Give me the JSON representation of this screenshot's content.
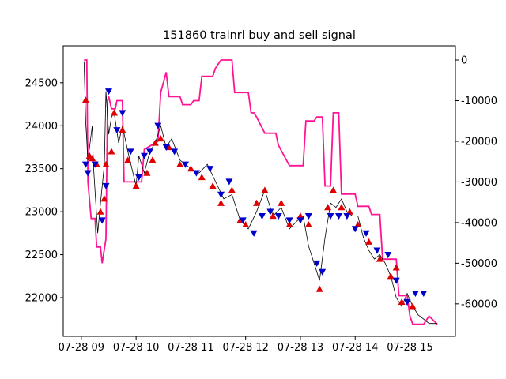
{
  "chart_data": {
    "type": "line",
    "title": "151860 trainrl buy and sell signal",
    "x_ticks": [
      "07-28 09",
      "07-28 10",
      "07-28 11",
      "07-28 12",
      "07-28 13",
      "07-28 14",
      "07-28 15"
    ],
    "x_tick_hours": [
      9,
      10,
      11,
      12,
      13,
      14,
      15
    ],
    "xlim_hours": [
      8.67,
      15.83
    ],
    "left_axis": {
      "ylim": [
        21550,
        24930
      ],
      "ticks": [
        22000,
        22500,
        23000,
        23500,
        24000,
        24500
      ],
      "tick_labels": [
        "22000",
        "22500",
        "23000",
        "23500",
        "24000",
        "24500"
      ]
    },
    "right_axis": {
      "ylim": [
        -68000,
        3500
      ],
      "ticks": [
        -60000,
        -50000,
        -40000,
        -30000,
        -20000,
        -10000,
        0
      ],
      "tick_labels": [
        "-60000",
        "-50000",
        "-40000",
        "-30000",
        "-20000",
        "-10000",
        "0"
      ]
    },
    "colors": {
      "price": "#000000",
      "equity": "#ff1493",
      "buy": "#e00000",
      "sell": "#0000cc"
    },
    "series": [
      {
        "kind": "price",
        "axis": "left",
        "points": [
          [
            9.05,
            24750
          ],
          [
            9.08,
            24050
          ],
          [
            9.12,
            23600
          ],
          [
            9.2,
            24000
          ],
          [
            9.22,
            23550
          ],
          [
            9.3,
            22750
          ],
          [
            9.35,
            23100
          ],
          [
            9.42,
            23550
          ],
          [
            9.45,
            24400
          ],
          [
            9.5,
            23900
          ],
          [
            9.55,
            24100
          ],
          [
            9.6,
            24150
          ],
          [
            9.68,
            23800
          ],
          [
            9.75,
            24000
          ],
          [
            9.85,
            23700
          ],
          [
            10.0,
            23300
          ],
          [
            10.05,
            23650
          ],
          [
            10.15,
            23450
          ],
          [
            10.25,
            23700
          ],
          [
            10.35,
            23800
          ],
          [
            10.45,
            24000
          ],
          [
            10.55,
            23750
          ],
          [
            10.65,
            23850
          ],
          [
            10.8,
            23600
          ],
          [
            11.0,
            23500
          ],
          [
            11.15,
            23450
          ],
          [
            11.3,
            23550
          ],
          [
            11.45,
            23350
          ],
          [
            11.6,
            23150
          ],
          [
            11.75,
            23200
          ],
          [
            11.9,
            22900
          ],
          [
            12.05,
            22800
          ],
          [
            12.2,
            23000
          ],
          [
            12.35,
            23250
          ],
          [
            12.5,
            22950
          ],
          [
            12.65,
            23050
          ],
          [
            12.8,
            22800
          ],
          [
            12.95,
            22900
          ],
          [
            13.05,
            22950
          ],
          [
            13.15,
            22600
          ],
          [
            13.25,
            22400
          ],
          [
            13.35,
            22200
          ],
          [
            13.45,
            22700
          ],
          [
            13.55,
            23100
          ],
          [
            13.65,
            23050
          ],
          [
            13.75,
            23150
          ],
          [
            13.85,
            23000
          ],
          [
            13.95,
            22950
          ],
          [
            14.05,
            22950
          ],
          [
            14.15,
            22700
          ],
          [
            14.25,
            22550
          ],
          [
            14.35,
            22450
          ],
          [
            14.45,
            22500
          ],
          [
            14.55,
            22400
          ],
          [
            14.65,
            22250
          ],
          [
            14.75,
            22000
          ],
          [
            14.85,
            21900
          ],
          [
            14.95,
            22050
          ],
          [
            15.05,
            21900
          ],
          [
            15.15,
            21800
          ],
          [
            15.25,
            21750
          ],
          [
            15.35,
            21700
          ],
          [
            15.5,
            21700
          ]
        ]
      },
      {
        "kind": "equity",
        "axis": "right",
        "points": [
          [
            9.05,
            0
          ],
          [
            9.1,
            0
          ],
          [
            9.12,
            -30000
          ],
          [
            9.18,
            -39000
          ],
          [
            9.25,
            -39000
          ],
          [
            9.28,
            -46000
          ],
          [
            9.35,
            -46000
          ],
          [
            9.38,
            -50000
          ],
          [
            9.45,
            -44000
          ],
          [
            9.48,
            -10000
          ],
          [
            9.5,
            -9000
          ],
          [
            9.55,
            -12000
          ],
          [
            9.62,
            -12000
          ],
          [
            9.65,
            -10000
          ],
          [
            9.75,
            -10000
          ],
          [
            9.78,
            -30000
          ],
          [
            10.1,
            -30000
          ],
          [
            10.15,
            -22000
          ],
          [
            10.4,
            -20000
          ],
          [
            10.45,
            -8000
          ],
          [
            10.55,
            -3000
          ],
          [
            10.6,
            -9000
          ],
          [
            10.8,
            -9000
          ],
          [
            10.85,
            -11000
          ],
          [
            11.0,
            -11000
          ],
          [
            11.05,
            -10000
          ],
          [
            11.15,
            -10000
          ],
          [
            11.2,
            -4000
          ],
          [
            11.4,
            -4000
          ],
          [
            11.45,
            -2000
          ],
          [
            11.55,
            0
          ],
          [
            11.75,
            0
          ],
          [
            11.8,
            -8000
          ],
          [
            12.05,
            -8000
          ],
          [
            12.1,
            -13000
          ],
          [
            12.15,
            -13000
          ],
          [
            12.2,
            -14000
          ],
          [
            12.35,
            -18000
          ],
          [
            12.55,
            -18000
          ],
          [
            12.6,
            -21000
          ],
          [
            12.8,
            -26000
          ],
          [
            13.05,
            -26000
          ],
          [
            13.1,
            -15000
          ],
          [
            13.25,
            -15000
          ],
          [
            13.3,
            -14000
          ],
          [
            13.4,
            -14000
          ],
          [
            13.45,
            -31000
          ],
          [
            13.55,
            -31000
          ],
          [
            13.6,
            -13000
          ],
          [
            13.7,
            -13000
          ],
          [
            13.75,
            -33000
          ],
          [
            14.0,
            -33000
          ],
          [
            14.05,
            -36000
          ],
          [
            14.25,
            -36000
          ],
          [
            14.3,
            -38000
          ],
          [
            14.45,
            -38000
          ],
          [
            14.5,
            -49000
          ],
          [
            14.75,
            -49000
          ],
          [
            14.8,
            -58000
          ],
          [
            14.95,
            -58000
          ],
          [
            15.0,
            -63000
          ],
          [
            15.05,
            -65000
          ],
          [
            15.25,
            -65000
          ],
          [
            15.35,
            -63000
          ],
          [
            15.5,
            -65000
          ]
        ]
      }
    ],
    "buy_signals": [
      [
        9.08,
        24300
      ],
      [
        9.15,
        23650
      ],
      [
        9.2,
        23620
      ],
      [
        9.28,
        23550
      ],
      [
        9.35,
        23000
      ],
      [
        9.42,
        23150
      ],
      [
        9.45,
        23550
      ],
      [
        9.55,
        23700
      ],
      [
        9.6,
        24150
      ],
      [
        9.75,
        23950
      ],
      [
        9.85,
        23600
      ],
      [
        10.0,
        23300
      ],
      [
        10.2,
        23450
      ],
      [
        10.3,
        23600
      ],
      [
        10.35,
        23800
      ],
      [
        10.45,
        23850
      ],
      [
        10.6,
        23750
      ],
      [
        10.8,
        23550
      ],
      [
        11.0,
        23500
      ],
      [
        11.2,
        23400
      ],
      [
        11.4,
        23300
      ],
      [
        11.55,
        23100
      ],
      [
        11.75,
        23250
      ],
      [
        11.9,
        22900
      ],
      [
        12.0,
        22850
      ],
      [
        12.2,
        23100
      ],
      [
        12.35,
        23250
      ],
      [
        12.5,
        22950
      ],
      [
        12.65,
        23100
      ],
      [
        12.8,
        22850
      ],
      [
        13.0,
        22950
      ],
      [
        13.15,
        22850
      ],
      [
        13.35,
        22100
      ],
      [
        13.5,
        23050
      ],
      [
        13.6,
        23250
      ],
      [
        13.75,
        23050
      ],
      [
        13.9,
        23000
      ],
      [
        14.05,
        22850
      ],
      [
        14.25,
        22650
      ],
      [
        14.45,
        22450
      ],
      [
        14.65,
        22250
      ],
      [
        14.75,
        22350
      ],
      [
        14.85,
        21950
      ],
      [
        15.05,
        21900
      ]
    ],
    "sell_signals": [
      [
        9.08,
        23550
      ],
      [
        9.12,
        23450
      ],
      [
        9.25,
        23550
      ],
      [
        9.38,
        22900
      ],
      [
        9.45,
        23300
      ],
      [
        9.5,
        24400
      ],
      [
        9.65,
        23950
      ],
      [
        9.75,
        24150
      ],
      [
        9.9,
        23700
      ],
      [
        10.05,
        23400
      ],
      [
        10.15,
        23650
      ],
      [
        10.25,
        23700
      ],
      [
        10.4,
        24000
      ],
      [
        10.55,
        23750
      ],
      [
        10.7,
        23700
      ],
      [
        10.9,
        23550
      ],
      [
        11.1,
        23450
      ],
      [
        11.35,
        23500
      ],
      [
        11.55,
        23200
      ],
      [
        11.7,
        23350
      ],
      [
        11.95,
        22900
      ],
      [
        12.15,
        22750
      ],
      [
        12.3,
        22950
      ],
      [
        12.45,
        23000
      ],
      [
        12.6,
        22950
      ],
      [
        12.8,
        22900
      ],
      [
        13.0,
        22900
      ],
      [
        13.15,
        22950
      ],
      [
        13.3,
        22400
      ],
      [
        13.4,
        22300
      ],
      [
        13.55,
        22950
      ],
      [
        13.7,
        22950
      ],
      [
        13.85,
        22950
      ],
      [
        14.0,
        22800
      ],
      [
        14.2,
        22750
      ],
      [
        14.4,
        22550
      ],
      [
        14.6,
        22500
      ],
      [
        14.75,
        22200
      ],
      [
        14.95,
        21950
      ],
      [
        15.1,
        22050
      ],
      [
        15.25,
        22050
      ]
    ]
  }
}
